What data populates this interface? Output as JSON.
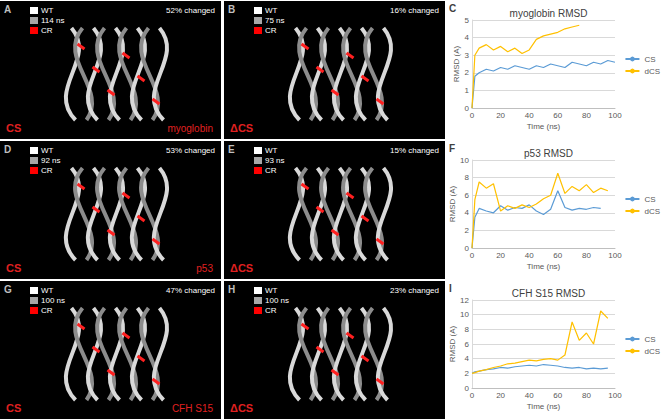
{
  "structure_panels": [
    {
      "panel_label": "A",
      "legend": [
        {
          "label": "WT",
          "color": "#ffffff"
        },
        {
          "label": "114 ns",
          "color": "#a6a6a6"
        },
        {
          "label": "CR",
          "color": "#ff0000"
        }
      ],
      "annotation": "52% changed",
      "condition": "CS",
      "protein": "myoglobin"
    },
    {
      "panel_label": "B",
      "legend": [
        {
          "label": "WT",
          "color": "#ffffff"
        },
        {
          "label": "75 ns",
          "color": "#a6a6a6"
        },
        {
          "label": "CR",
          "color": "#ff0000"
        }
      ],
      "annotation": "16% changed",
      "condition": "ΔCS"
    },
    {
      "panel_label": "D",
      "legend": [
        {
          "label": "WT",
          "color": "#ffffff"
        },
        {
          "label": "92 ns",
          "color": "#a6a6a6"
        },
        {
          "label": "CR",
          "color": "#ff0000"
        }
      ],
      "annotation": "53% changed",
      "condition": "CS",
      "protein": "p53"
    },
    {
      "panel_label": "E",
      "legend": [
        {
          "label": "WT",
          "color": "#ffffff"
        },
        {
          "label": "93 ns",
          "color": "#a6a6a6"
        },
        {
          "label": "CR",
          "color": "#ff0000"
        }
      ],
      "annotation": "15% changed",
      "condition": "ΔCS"
    },
    {
      "panel_label": "G",
      "legend": [
        {
          "label": "WT",
          "color": "#ffffff"
        },
        {
          "label": "100 ns",
          "color": "#a6a6a6"
        },
        {
          "label": "CR",
          "color": "#ff0000"
        }
      ],
      "annotation": "47% changed",
      "condition": "CS",
      "protein": "CFH S15"
    },
    {
      "panel_label": "H",
      "legend": [
        {
          "label": "WT",
          "color": "#ffffff"
        },
        {
          "label": "100 ns",
          "color": "#a6a6a6"
        },
        {
          "label": "CR",
          "color": "#ff0000"
        }
      ],
      "annotation": "23% changed",
      "condition": "ΔCS"
    }
  ],
  "chart_data": [
    {
      "type": "line",
      "panel_label": "C",
      "title": "myoglobin RMSD",
      "x_label": "Time (ns)",
      "y_label": "RMSD (A)",
      "x": [
        0,
        2,
        5,
        10,
        15,
        20,
        25,
        30,
        35,
        40,
        45,
        50,
        55,
        60,
        65,
        70,
        75,
        80,
        85,
        90,
        95,
        100
      ],
      "xlim": [
        0,
        100
      ],
      "xticks": [
        0,
        20,
        40,
        60,
        80,
        100
      ],
      "ylim": [
        0,
        5
      ],
      "yticks": [
        0,
        1,
        2,
        3,
        4,
        5
      ],
      "grid": true,
      "legend": "right",
      "series": [
        {
          "name": "CS",
          "color": "#5b9bd5",
          "values": [
            0,
            1.8,
            2.0,
            2.2,
            2.1,
            2.3,
            2.2,
            2.4,
            2.3,
            2.2,
            2.4,
            2.3,
            2.5,
            2.4,
            2.3,
            2.6,
            2.5,
            2.4,
            2.6,
            2.5,
            2.7,
            2.6
          ]
        },
        {
          "name": "dCS",
          "color": "#ffc000",
          "values": [
            0,
            3.0,
            3.4,
            3.6,
            3.3,
            3.5,
            3.2,
            3.4,
            3.1,
            3.3,
            3.9,
            4.1,
            4.2,
            4.3,
            4.5,
            4.6,
            4.7,
            null,
            null,
            null,
            null,
            null
          ]
        }
      ]
    },
    {
      "type": "line",
      "panel_label": "F",
      "title": "p53 RMSD",
      "x_label": "Time (ns)",
      "y_label": "RMSD (A)",
      "x": [
        0,
        2,
        5,
        10,
        15,
        20,
        25,
        30,
        35,
        40,
        45,
        50,
        55,
        60,
        65,
        70,
        75,
        80,
        85,
        90,
        95
      ],
      "xlim": [
        0,
        100
      ],
      "xticks": [
        0,
        20,
        40,
        60,
        80,
        100
      ],
      "ylim": [
        0,
        10
      ],
      "yticks": [
        0,
        2,
        4,
        6,
        8,
        10
      ],
      "grid": true,
      "legend": "right",
      "series": [
        {
          "name": "CS",
          "color": "#5b9bd5",
          "values": [
            0,
            3.5,
            4.5,
            4.2,
            4.0,
            4.8,
            4.3,
            4.6,
            4.5,
            4.9,
            4.2,
            3.8,
            4.4,
            6.5,
            4.6,
            4.3,
            4.5,
            4.4,
            4.6,
            4.5,
            null
          ]
        },
        {
          "name": "dCS",
          "color": "#ffc000",
          "values": [
            0,
            5.5,
            7.5,
            6.8,
            7.3,
            4.2,
            4.8,
            4.5,
            4.9,
            4.6,
            5.0,
            5.6,
            6.0,
            8.5,
            6.2,
            7.0,
            6.5,
            7.2,
            6.3,
            6.8,
            6.5
          ]
        }
      ]
    },
    {
      "type": "line",
      "panel_label": "I",
      "title": "CFH S15 RMSD",
      "x_label": "Time (ns)",
      "y_label": "RMSD (A)",
      "x": [
        0,
        2,
        5,
        10,
        15,
        20,
        25,
        30,
        35,
        40,
        45,
        50,
        55,
        60,
        65,
        70,
        75,
        80,
        85,
        90,
        95
      ],
      "xlim": [
        0,
        100
      ],
      "xticks": [
        0,
        20,
        40,
        60,
        80,
        100
      ],
      "ylim": [
        0,
        12
      ],
      "yticks": [
        0,
        2,
        4,
        6,
        8,
        10,
        12
      ],
      "grid": true,
      "legend": "right",
      "series": [
        {
          "name": "CS",
          "color": "#5b9bd5",
          "values": [
            2.0,
            2.2,
            2.3,
            2.5,
            2.6,
            2.8,
            2.7,
            2.9,
            3.0,
            3.1,
            3.0,
            3.2,
            3.1,
            3.0,
            2.8,
            2.7,
            2.8,
            2.6,
            2.7,
            2.6,
            2.7
          ]
        },
        {
          "name": "dCS",
          "color": "#ffc000",
          "values": [
            2.0,
            2.1,
            2.3,
            2.5,
            2.8,
            3.0,
            3.3,
            3.4,
            3.6,
            3.8,
            3.7,
            3.9,
            4.0,
            3.8,
            4.5,
            9.0,
            6.5,
            7.5,
            6.0,
            10.5,
            9.5
          ]
        }
      ]
    }
  ]
}
